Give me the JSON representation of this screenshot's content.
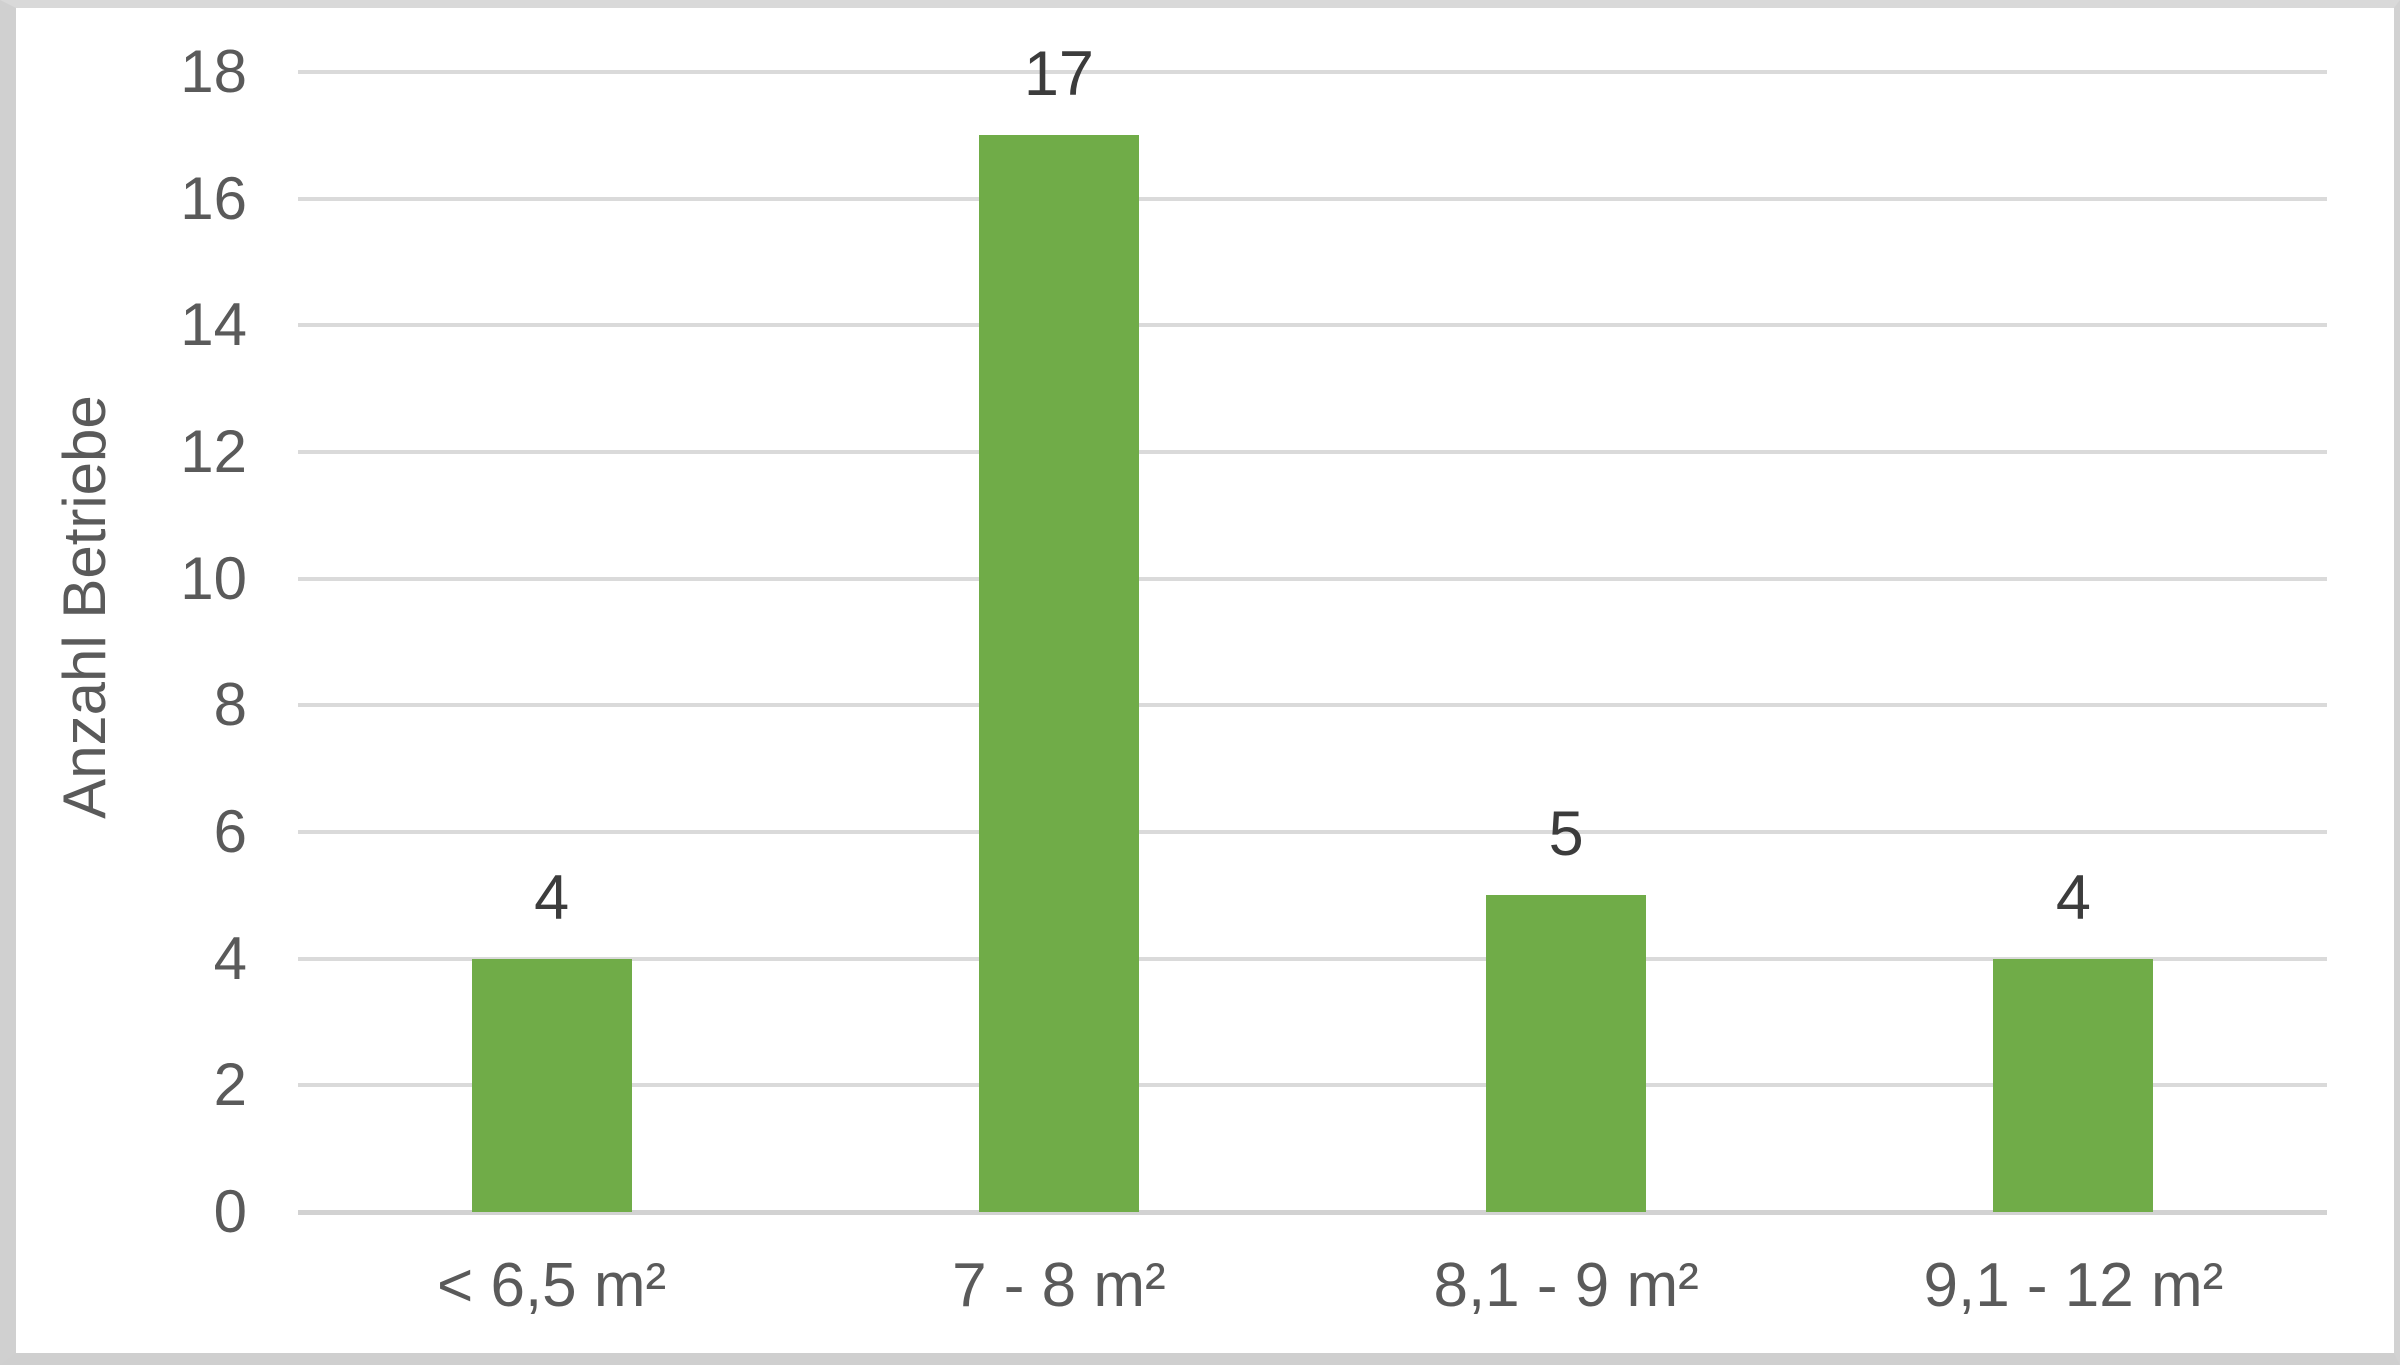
{
  "chart_data": {
    "type": "bar",
    "title": "",
    "categories": [
      "< 6,5 m²",
      "7 - 8 m²",
      "8,1 - 9 m²",
      "9,1 - 12 m²"
    ],
    "values": [
      4,
      17,
      5,
      4
    ],
    "data_labels": [
      "4",
      "17",
      "5",
      "4"
    ],
    "xlabel": "",
    "ylabel": "Anzahl Betriebe",
    "ylim": [
      0,
      18
    ],
    "ytick_interval": 2,
    "ytick_labels": [
      "0",
      "2",
      "4",
      "6",
      "8",
      "10",
      "12",
      "14",
      "16",
      "18"
    ],
    "grid": "horizontal",
    "legend_position": "none"
  },
  "colors": {
    "bar": "#70AC48",
    "gridline": "#DADADA",
    "axis_line": "#D2D2D2",
    "tick_text": "#5A5A5A",
    "data_label_text": "#3C3C3C",
    "background": "#FFFFFF",
    "frame_border": "#D2D2D2"
  }
}
